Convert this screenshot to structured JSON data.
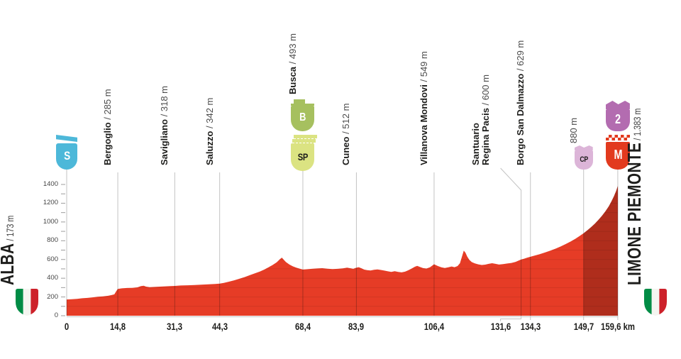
{
  "colors": {
    "profile_red": "#e63c26",
    "climb_dark_overlay": "rgba(0,0,0,0.24)",
    "line_gray": "#c3c3c3",
    "line_in_red": "rgba(40,20,15,0.32)",
    "grid_in_red": "rgba(0,0,0,0.09)",
    "tick_gray": "#9d9d9d",
    "text_dark": "#1d1d1b",
    "text_gray": "#4c4c4c",
    "badge_start": "#4db8d9",
    "badge_b": "#a6c05f",
    "badge_sp": "#dbe382",
    "badge_cp": "#dcb5d8",
    "badge_cat2": "#b36cb0",
    "badge_m": "#e23a1e",
    "flag_green": "#008c45",
    "flag_white": "#f4f5f0",
    "flag_red": "#cd212a"
  },
  "endpoints": {
    "start": {
      "name": "ALBA",
      "elev": " / 173 m"
    },
    "finish": {
      "name": "LIMONE PIEMONTE",
      "elev": " / 1.383 m"
    }
  },
  "badges": {
    "S": {
      "label": "S"
    },
    "B": {
      "label": "B"
    },
    "SP": {
      "label": "SP"
    },
    "CP": {
      "label": "CP"
    },
    "2": {
      "label": "2"
    },
    "M": {
      "label": "M"
    }
  },
  "chart_data": {
    "type": "area",
    "title": "Stage elevation profile Alba - Limone Piemonte",
    "x_unit": "km",
    "y_unit": "m",
    "xlim": [
      0,
      159.6
    ],
    "ylim": [
      0,
      1400
    ],
    "y_ticks": [
      0,
      200,
      400,
      600,
      800,
      1000,
      1200,
      1400
    ],
    "y_minor_step": 100,
    "x_ticks": [
      {
        "km": 0,
        "label": "0"
      },
      {
        "km": 14.8,
        "label": "14,8"
      },
      {
        "km": 31.3,
        "label": "31,3"
      },
      {
        "km": 44.3,
        "label": "44,3"
      },
      {
        "km": 68.4,
        "label": "68,4"
      },
      {
        "km": 83.9,
        "label": "83,9"
      },
      {
        "km": 106.4,
        "label": "106,4"
      },
      {
        "km": 131.6,
        "label": "131,6",
        "dx": -29
      },
      {
        "km": 134.3,
        "label": "134,3"
      },
      {
        "km": 149.7,
        "label": "149,7"
      },
      {
        "km": 159.6,
        "label": "159,6 km"
      }
    ],
    "climb_highlight": [
      149.7,
      159.6
    ],
    "below_axis_ticks_km": [
      134.3,
      149.7,
      159.6
    ],
    "waypoints": [
      {
        "km": 0,
        "elev": 173,
        "badges": [
          "S"
        ]
      },
      {
        "km": 14.8,
        "elev": 285,
        "name": "Bergoglio",
        "elev_label": "285 m"
      },
      {
        "km": 31.3,
        "elev": 318,
        "name": "Savigliano",
        "elev_label": "318 m"
      },
      {
        "km": 44.3,
        "elev": 342,
        "name": "Saluzzo",
        "elev_label": "342 m"
      },
      {
        "km": 68.4,
        "elev": 493,
        "name": "Busca",
        "elev_label": "493 m",
        "badges": [
          "B",
          "SP"
        ]
      },
      {
        "km": 83.9,
        "elev": 512,
        "name": "Cuneo",
        "elev_label": "512 m"
      },
      {
        "km": 106.4,
        "elev": 549,
        "name": "Villanova Mondovi",
        "elev_label": "549 m"
      },
      {
        "km": 131.6,
        "elev": 600,
        "name": "Santuario",
        "name2": "Regina Pacis",
        "elev_label": "600 m",
        "dx": -29
      },
      {
        "km": 134.3,
        "elev": 629,
        "name": "Borgo San Dalmazzo",
        "elev_label": "629 m"
      },
      {
        "km": 149.7,
        "elev": 880,
        "elev_label": "880 m",
        "badges": [
          "CP"
        ]
      },
      {
        "km": 159.6,
        "elev": 1383,
        "badges": [
          "2",
          "M"
        ]
      }
    ],
    "profile": [
      [
        0,
        173
      ],
      [
        1.5,
        176
      ],
      [
        3,
        180
      ],
      [
        4.5,
        186
      ],
      [
        6,
        190
      ],
      [
        7.5,
        196
      ],
      [
        9,
        203
      ],
      [
        10.5,
        206
      ],
      [
        12,
        213
      ],
      [
        13,
        220
      ],
      [
        13.8,
        228
      ],
      [
        14.3,
        258
      ],
      [
        14.8,
        285
      ],
      [
        16,
        292
      ],
      [
        17.5,
        296
      ],
      [
        19,
        297
      ],
      [
        20.5,
        303
      ],
      [
        21.5,
        316
      ],
      [
        22.3,
        320
      ],
      [
        23,
        310
      ],
      [
        24,
        305
      ],
      [
        25.5,
        307
      ],
      [
        27,
        310
      ],
      [
        28.5,
        313
      ],
      [
        30,
        316
      ],
      [
        31.3,
        318
      ],
      [
        33,
        322
      ],
      [
        35,
        325
      ],
      [
        37,
        328
      ],
      [
        39,
        331
      ],
      [
        41,
        335
      ],
      [
        43,
        339
      ],
      [
        44.3,
        342
      ],
      [
        45.5,
        350
      ],
      [
        47,
        363
      ],
      [
        48.5,
        378
      ],
      [
        50,
        394
      ],
      [
        51.5,
        412
      ],
      [
        53,
        432
      ],
      [
        54.5,
        452
      ],
      [
        56,
        472
      ],
      [
        57.2,
        492
      ],
      [
        58.4,
        515
      ],
      [
        59.6,
        540
      ],
      [
        60.8,
        570
      ],
      [
        61.8,
        605
      ],
      [
        62.3,
        620
      ],
      [
        62.8,
        600
      ],
      [
        63.5,
        572
      ],
      [
        64.5,
        546
      ],
      [
        65.5,
        527
      ],
      [
        66.5,
        512
      ],
      [
        67.5,
        501
      ],
      [
        68.4,
        493
      ],
      [
        69.5,
        496
      ],
      [
        71,
        500
      ],
      [
        72.5,
        504
      ],
      [
        74,
        507
      ],
      [
        75.5,
        502
      ],
      [
        77,
        498
      ],
      [
        78.5,
        500
      ],
      [
        80,
        505
      ],
      [
        81.2,
        512
      ],
      [
        82.2,
        506
      ],
      [
        83,
        500
      ],
      [
        83.9,
        512
      ],
      [
        84.6,
        518
      ],
      [
        85.4,
        505
      ],
      [
        86.2,
        492
      ],
      [
        87,
        486
      ],
      [
        88,
        483
      ],
      [
        89,
        490
      ],
      [
        90,
        494
      ],
      [
        91,
        488
      ],
      [
        92,
        481
      ],
      [
        93,
        474
      ],
      [
        94,
        468
      ],
      [
        95,
        475
      ],
      [
        96,
        467
      ],
      [
        97,
        462
      ],
      [
        98,
        470
      ],
      [
        99,
        486
      ],
      [
        100,
        505
      ],
      [
        100.8,
        522
      ],
      [
        101.5,
        532
      ],
      [
        102.3,
        520
      ],
      [
        103.2,
        508
      ],
      [
        104.2,
        503
      ],
      [
        105.2,
        516
      ],
      [
        106.4,
        549
      ],
      [
        107.5,
        530
      ],
      [
        108.5,
        516
      ],
      [
        109.5,
        509
      ],
      [
        110.5,
        517
      ],
      [
        111.5,
        525
      ],
      [
        112.3,
        518
      ],
      [
        113.2,
        530
      ],
      [
        113.9,
        560
      ],
      [
        114.5,
        635
      ],
      [
        115,
        695
      ],
      [
        115.5,
        672
      ],
      [
        116,
        630
      ],
      [
        116.6,
        596
      ],
      [
        117.3,
        572
      ],
      [
        118.2,
        558
      ],
      [
        119.2,
        548
      ],
      [
        120.2,
        541
      ],
      [
        121.2,
        545
      ],
      [
        122.2,
        553
      ],
      [
        123.2,
        560
      ],
      [
        124.2,
        553
      ],
      [
        125.2,
        546
      ],
      [
        126.4,
        551
      ],
      [
        127.6,
        557
      ],
      [
        128.8,
        563
      ],
      [
        130,
        574
      ],
      [
        131,
        590
      ],
      [
        131.6,
        600
      ],
      [
        132.4,
        608
      ],
      [
        133.3,
        618
      ],
      [
        134.3,
        629
      ],
      [
        135.5,
        641
      ],
      [
        137,
        657
      ],
      [
        138.5,
        674
      ],
      [
        140,
        693
      ],
      [
        141.5,
        714
      ],
      [
        143,
        738
      ],
      [
        144.5,
        764
      ],
      [
        146,
        793
      ],
      [
        147.3,
        820
      ],
      [
        148.5,
        849
      ],
      [
        149.7,
        880
      ],
      [
        150.8,
        912
      ],
      [
        151.9,
        946
      ],
      [
        153,
        984
      ],
      [
        154,
        1022
      ],
      [
        155,
        1065
      ],
      [
        156,
        1113
      ],
      [
        157,
        1168
      ],
      [
        157.8,
        1222
      ],
      [
        158.5,
        1275
      ],
      [
        159.1,
        1330
      ],
      [
        159.6,
        1383
      ]
    ]
  }
}
